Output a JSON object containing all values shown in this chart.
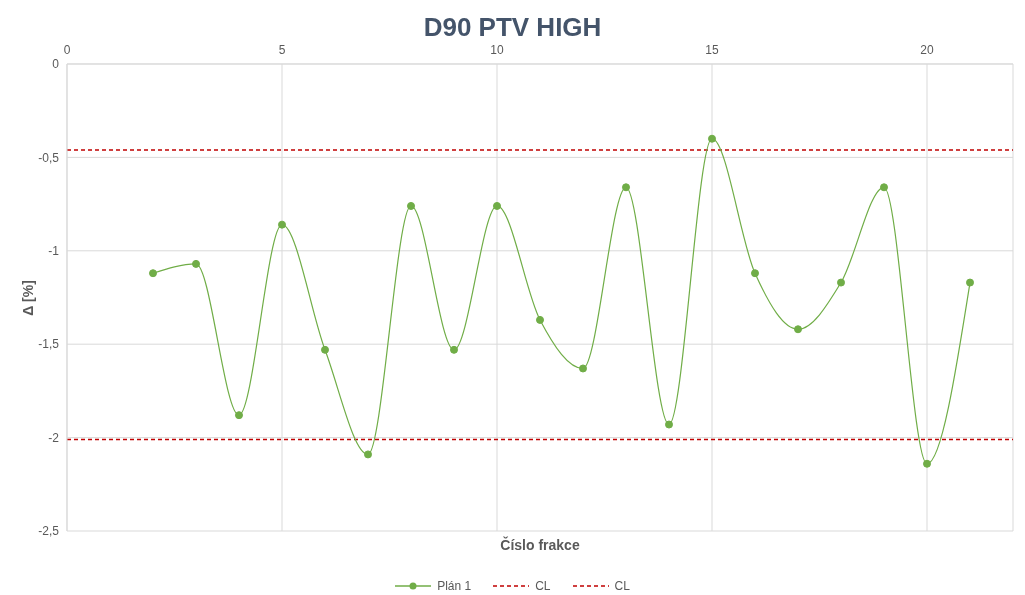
{
  "chart_data": {
    "type": "line",
    "title": "D90 PTV HIGH",
    "xlabel": "Číslo frakce",
    "ylabel": "Δ [%]",
    "x": [
      2,
      3,
      4,
      5,
      6,
      7,
      8,
      9,
      10,
      11,
      12,
      13,
      14,
      15,
      16,
      17,
      18,
      19,
      20,
      21
    ],
    "series": [
      {
        "name": "Plán 1",
        "color": "#70ad47",
        "values": [
          -1.12,
          -1.07,
          -1.88,
          -0.86,
          -1.53,
          -2.09,
          -0.76,
          -1.53,
          -0.76,
          -1.37,
          -1.63,
          -0.66,
          -1.93,
          -0.4,
          -1.12,
          -1.42,
          -1.17,
          -0.66,
          -2.14,
          -1.17
        ]
      }
    ],
    "ref_lines": [
      {
        "axis": "y",
        "value": -0.46,
        "label": "CL",
        "color": "#c00000",
        "line_style": "dashed"
      },
      {
        "axis": "y",
        "value": -2.01,
        "label": "CL",
        "color": "#c00000",
        "line_style": "dashed"
      }
    ],
    "xlim": [
      0,
      22
    ],
    "xticks": [
      0,
      5,
      10,
      15,
      20
    ],
    "ylim": [
      -2.5,
      0
    ],
    "yticks": [
      0,
      {
        "value": -0.5,
        "label": "-0,5"
      },
      -1,
      {
        "value": -1.5,
        "label": "-1,5"
      },
      -2,
      {
        "value": -2.5,
        "label": "-2,5"
      }
    ],
    "grid": true,
    "legend": "bottom",
    "marker": "circle",
    "line_style": "solid"
  }
}
